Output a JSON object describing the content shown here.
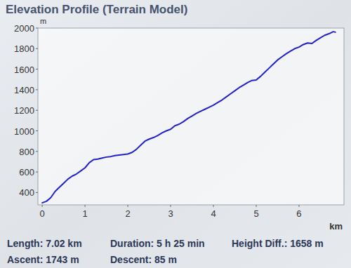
{
  "chart_data": {
    "type": "line",
    "title": "Elevation Profile (Terrain Model)",
    "y_label": "m",
    "x_label": "km",
    "annotations": [
      "Length: 7.02 km",
      "Duration: 5 h 25 min",
      "Height Diff.: 1658 m",
      "Ascent: 1743 m",
      "Descent: 85 m"
    ],
    "x": [
      0,
      0.1,
      0.2,
      0.3,
      0.4,
      0.5,
      0.6,
      0.7,
      0.8,
      0.9,
      1.0,
      1.1,
      1.2,
      1.3,
      1.4,
      1.5,
      1.6,
      1.7,
      1.8,
      1.9,
      2.0,
      2.1,
      2.2,
      2.3,
      2.4,
      2.5,
      2.6,
      2.7,
      2.8,
      2.9,
      3.0,
      3.1,
      3.2,
      3.3,
      3.4,
      3.5,
      3.6,
      3.7,
      3.8,
      3.9,
      4.0,
      4.1,
      4.2,
      4.3,
      4.4,
      4.5,
      4.6,
      4.7,
      4.8,
      4.9,
      5.0,
      5.1,
      5.2,
      5.3,
      5.4,
      5.5,
      5.6,
      5.7,
      5.8,
      5.9,
      6.0,
      6.1,
      6.2,
      6.3,
      6.4,
      6.5,
      6.6,
      6.7,
      6.8,
      6.85
    ],
    "values": [
      300,
      315,
      350,
      410,
      450,
      490,
      530,
      560,
      580,
      610,
      640,
      690,
      720,
      725,
      735,
      745,
      750,
      760,
      765,
      770,
      775,
      790,
      820,
      860,
      900,
      920,
      935,
      955,
      980,
      1000,
      1015,
      1050,
      1065,
      1090,
      1120,
      1145,
      1170,
      1190,
      1210,
      1230,
      1250,
      1275,
      1300,
      1330,
      1360,
      1390,
      1420,
      1445,
      1470,
      1490,
      1495,
      1530,
      1570,
      1610,
      1650,
      1690,
      1720,
      1750,
      1775,
      1800,
      1815,
      1840,
      1855,
      1850,
      1880,
      1905,
      1930,
      1945,
      1965,
      1960
    ],
    "color": "#2121cc",
    "xlim": [
      -0.1,
      7.05
    ],
    "ylim": [
      280,
      2000
    ],
    "xticks": [
      0,
      1,
      2,
      3,
      4,
      5,
      6
    ],
    "yticks": [
      400,
      600,
      800,
      1000,
      1200,
      1400,
      1600,
      1800,
      2000
    ],
    "grid": false
  }
}
